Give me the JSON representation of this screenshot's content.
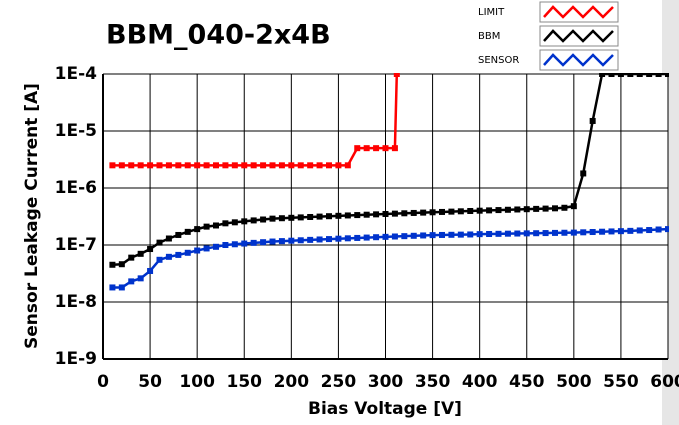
{
  "chart_data": {
    "type": "line",
    "title": "BBM_040-2x4B",
    "x_label": "Bias Voltage [V]",
    "y_label": "Sensor Leakage Current [A]",
    "log_y": true,
    "grid": true,
    "xlim": [
      0,
      600
    ],
    "xticks": [
      0,
      50,
      100,
      150,
      200,
      250,
      300,
      350,
      400,
      450,
      500,
      550,
      600
    ],
    "ylim": [
      1e-09,
      0.0001
    ],
    "yticks": [
      {
        "value": 1e-09,
        "label": "1E-9"
      },
      {
        "value": 1e-08,
        "label": "1E-8"
      },
      {
        "value": 1e-07,
        "label": "1E-7"
      },
      {
        "value": 1e-06,
        "label": "1E-6"
      },
      {
        "value": 1e-05,
        "label": "1E-5"
      },
      {
        "value": 0.0001,
        "label": "1E-4"
      }
    ],
    "series": [
      {
        "name": "LIMIT",
        "color": "#ff0000",
        "x": [
          10,
          20,
          30,
          40,
          50,
          60,
          70,
          80,
          90,
          100,
          110,
          120,
          130,
          140,
          150,
          160,
          170,
          180,
          190,
          200,
          210,
          220,
          230,
          240,
          250,
          260,
          270,
          280,
          290,
          300,
          310,
          312
        ],
        "values": [
          2.5e-06,
          2.5e-06,
          2.5e-06,
          2.5e-06,
          2.5e-06,
          2.5e-06,
          2.5e-06,
          2.5e-06,
          2.5e-06,
          2.5e-06,
          2.5e-06,
          2.5e-06,
          2.5e-06,
          2.5e-06,
          2.5e-06,
          2.5e-06,
          2.5e-06,
          2.5e-06,
          2.5e-06,
          2.5e-06,
          2.5e-06,
          2.5e-06,
          2.5e-06,
          2.5e-06,
          2.5e-06,
          2.5e-06,
          5e-06,
          5e-06,
          5e-06,
          5e-06,
          5e-06,
          0.0001
        ]
      },
      {
        "name": "BBM",
        "color": "#000000",
        "x": [
          10,
          20,
          30,
          40,
          50,
          60,
          70,
          80,
          90,
          100,
          110,
          120,
          130,
          140,
          150,
          160,
          170,
          180,
          190,
          200,
          210,
          220,
          230,
          240,
          250,
          260,
          270,
          280,
          290,
          300,
          310,
          320,
          330,
          340,
          350,
          360,
          370,
          380,
          390,
          400,
          410,
          420,
          430,
          440,
          450,
          460,
          470,
          480,
          490,
          500,
          510,
          520,
          530,
          540,
          550,
          560,
          570,
          580,
          590,
          600
        ],
        "values": [
          4.5e-08,
          4.6e-08,
          6e-08,
          7e-08,
          8.5e-08,
          1.1e-07,
          1.3e-07,
          1.5e-07,
          1.7e-07,
          1.9e-07,
          2.1e-07,
          2.2e-07,
          2.4e-07,
          2.5e-07,
          2.6e-07,
          2.7e-07,
          2.8e-07,
          2.9e-07,
          2.95e-07,
          3e-07,
          3.05e-07,
          3.1e-07,
          3.15e-07,
          3.2e-07,
          3.25e-07,
          3.3e-07,
          3.35e-07,
          3.4e-07,
          3.45e-07,
          3.5e-07,
          3.55e-07,
          3.6e-07,
          3.65e-07,
          3.7e-07,
          3.75e-07,
          3.8e-07,
          3.85e-07,
          3.9e-07,
          3.95e-07,
          4e-07,
          4.05e-07,
          4.1e-07,
          4.15e-07,
          4.2e-07,
          4.25e-07,
          4.3e-07,
          4.35e-07,
          4.4e-07,
          4.5e-07,
          4.8e-07,
          1.8e-06,
          1.5e-05,
          0.0001,
          0.0001,
          0.0001,
          0.0001,
          0.0001,
          0.0001,
          0.0001,
          0.0001
        ]
      },
      {
        "name": "SENSOR",
        "color": "#0033cc",
        "x": [
          10,
          20,
          30,
          40,
          50,
          60,
          70,
          80,
          90,
          100,
          110,
          120,
          130,
          140,
          150,
          160,
          170,
          180,
          190,
          200,
          210,
          220,
          230,
          240,
          250,
          260,
          270,
          280,
          290,
          300,
          310,
          320,
          330,
          340,
          350,
          360,
          370,
          380,
          390,
          400,
          410,
          420,
          430,
          440,
          450,
          460,
          470,
          480,
          490,
          500,
          510,
          520,
          530,
          540,
          550,
          560,
          570,
          580,
          590,
          600
        ],
        "values": [
          1.8e-08,
          1.8e-08,
          2.3e-08,
          2.6e-08,
          3.5e-08,
          5.5e-08,
          6.2e-08,
          6.7e-08,
          7.3e-08,
          8e-08,
          8.7e-08,
          9.3e-08,
          1e-07,
          1.03e-07,
          1.06e-07,
          1.09e-07,
          1.12e-07,
          1.15e-07,
          1.17e-07,
          1.19e-07,
          1.21e-07,
          1.23e-07,
          1.25e-07,
          1.27e-07,
          1.29e-07,
          1.31e-07,
          1.33e-07,
          1.35e-07,
          1.37e-07,
          1.39e-07,
          1.41e-07,
          1.43e-07,
          1.45e-07,
          1.47e-07,
          1.49e-07,
          1.5e-07,
          1.51e-07,
          1.52e-07,
          1.53e-07,
          1.55e-07,
          1.56e-07,
          1.57e-07,
          1.58e-07,
          1.59e-07,
          1.6e-07,
          1.61e-07,
          1.62e-07,
          1.63e-07,
          1.64e-07,
          1.65e-07,
          1.67e-07,
          1.69e-07,
          1.71e-07,
          1.73e-07,
          1.75e-07,
          1.77e-07,
          1.8e-07,
          1.83e-07,
          1.87e-07,
          1.9e-07
        ]
      }
    ]
  }
}
